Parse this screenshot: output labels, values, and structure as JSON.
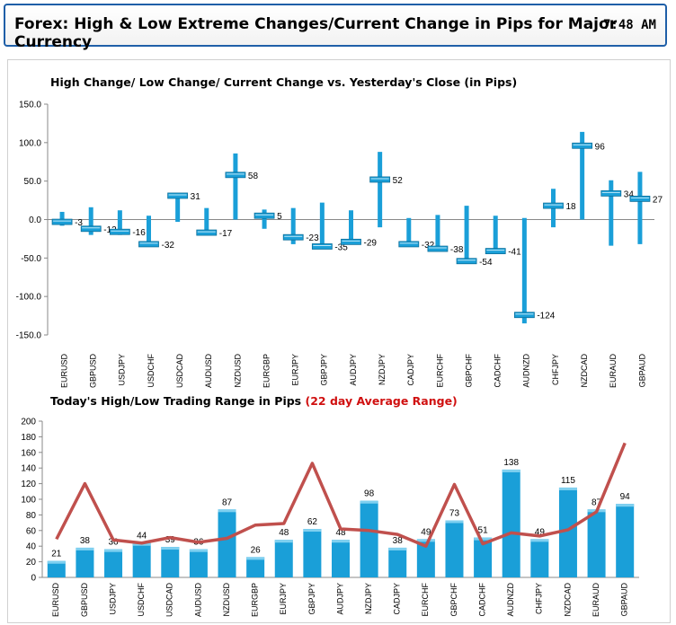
{
  "header": {
    "title": "Forex:  High & Low Extreme Changes/Current Change in Pips for Major Currency",
    "time": "7:48 AM"
  },
  "colors": {
    "bar": "#1a9fd8",
    "marker": "#1a9fd8",
    "line": "#c0504d",
    "header_border": "#1f5fa8"
  },
  "chart_data": [
    {
      "type": "range",
      "title": "High Change/ Low Change/ Current Change vs. Yesterday's Close (in Pips)",
      "ylim": [
        -150,
        150
      ],
      "yticks": [
        "150.0",
        "100.0",
        "50.0",
        "0.0",
        "-50.0",
        "-100.0",
        "-150.0"
      ],
      "ytick_values": [
        150,
        100,
        50,
        0,
        -50,
        -100,
        -150
      ],
      "categories": [
        "EURUSD",
        "GBPUSD",
        "USDJPY",
        "USDCHF",
        "USDCAD",
        "AUDUSD",
        "NZDUSD",
        "EURGBP",
        "EURJPY",
        "GBPJPY",
        "AUDJPY",
        "NZDJPY",
        "CADJPY",
        "EURCHF",
        "GBPCHF",
        "CADCHF",
        "AUDNZD",
        "CHFJPY",
        "NZDCAD",
        "EURAUD",
        "GBPAUD"
      ],
      "high": [
        10,
        16,
        12,
        5,
        33,
        15,
        86,
        13,
        15,
        22,
        12,
        88,
        2,
        6,
        18,
        5,
        2,
        40,
        114,
        51,
        62
      ],
      "low": [
        -8,
        -20,
        -20,
        -35,
        -3,
        -18,
        0,
        -12,
        -32,
        -38,
        -30,
        -10,
        -35,
        -35,
        -55,
        -45,
        -135,
        -10,
        0,
        -34,
        -32
      ],
      "current": [
        -3,
        -12,
        -16,
        -32,
        31,
        -17,
        58,
        5,
        -23,
        -35,
        -29,
        52,
        -32,
        -38,
        -54,
        -41,
        -124,
        18,
        96,
        34,
        27
      ],
      "current_labels": [
        "-3",
        "-12",
        "-16",
        "-32",
        "31",
        "-17",
        "58",
        "5",
        "-23",
        "-35",
        "-29",
        "52",
        "-32",
        "-38",
        "-54",
        "-41",
        "-124",
        "18",
        "96",
        "34",
        "27"
      ]
    },
    {
      "type": "bar+line",
      "title": "Today's High/Low Trading Range in Pips",
      "subtitle": "(22 day Average Range)",
      "ylim": [
        0,
        200
      ],
      "yticks": [
        "200",
        "180",
        "160",
        "140",
        "120",
        "100",
        "80",
        "60",
        "40",
        "20",
        "0"
      ],
      "ytick_values": [
        200,
        180,
        160,
        140,
        120,
        100,
        80,
        60,
        40,
        20,
        0
      ],
      "categories": [
        "EURUSD",
        "GBPUSD",
        "USDJPY",
        "USDCHF",
        "USDCAD",
        "AUDUSD",
        "NZDUSD",
        "EURGBP",
        "EURJPY",
        "GBPJPY",
        "AUDJPY",
        "NZDJPY",
        "CADJPY",
        "EURCHF",
        "GBPCHF",
        "CADCHF",
        "AUDNZD",
        "CHFJPY",
        "NZDCAD",
        "EURAUD",
        "GBPAUD"
      ],
      "series": [
        {
          "values": [
            21,
            38,
            36,
            44,
            39,
            36,
            87,
            26,
            48,
            62,
            48,
            98,
            38,
            49,
            73,
            51,
            138,
            49,
            115,
            87,
            94
          ],
          "labels": [
            "21",
            "38",
            "36",
            "44",
            "39",
            "36",
            "87",
            "26",
            "48",
            "62",
            "48",
            "98",
            "38",
            "49",
            "73",
            "51",
            "138",
            "49",
            "115",
            "87",
            "94"
          ]
        },
        {
          "values": [
            49,
            120,
            48,
            44,
            51,
            45,
            50,
            67,
            69,
            146,
            62,
            60,
            55,
            40,
            119,
            43,
            57,
            53,
            61,
            84,
            172
          ]
        }
      ]
    }
  ]
}
